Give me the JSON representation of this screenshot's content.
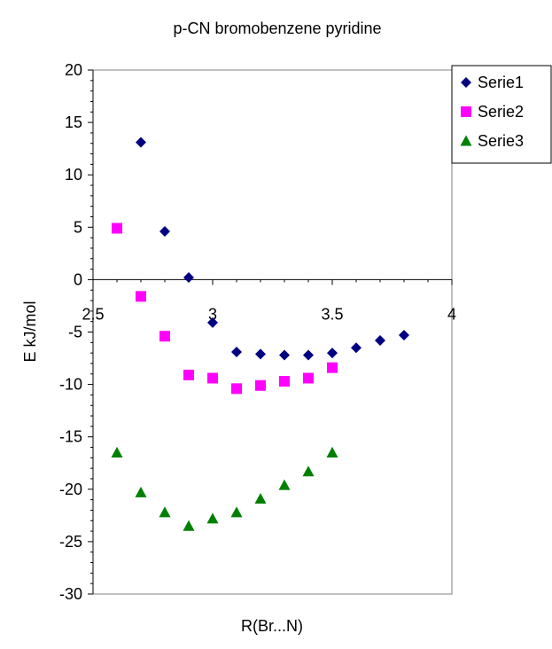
{
  "chart_data": {
    "type": "scatter",
    "title": "p-CN bromobenzene pyridine",
    "xlabel": "R(Br...N)",
    "ylabel": "E kJ/mol",
    "xlim": [
      2.5,
      4
    ],
    "ylim": [
      -30,
      20
    ],
    "x_ticks": [
      "2.5",
      "3",
      "3.5",
      "4"
    ],
    "y_ticks": [
      "20",
      "15",
      "10",
      "5",
      "0",
      "-5",
      "-10",
      "-15",
      "-20",
      "-25",
      "-30"
    ],
    "grid": false,
    "legend_position": "right",
    "series": [
      {
        "name": "Serie1",
        "marker": "diamond",
        "color": "#000080",
        "points": [
          [
            2.7,
            13.1
          ],
          [
            2.8,
            4.6
          ],
          [
            2.9,
            0.2
          ],
          [
            3.0,
            -4.1
          ],
          [
            3.1,
            -6.9
          ],
          [
            3.2,
            -7.1
          ],
          [
            3.3,
            -7.2
          ],
          [
            3.4,
            -7.2
          ],
          [
            3.5,
            -7.0
          ],
          [
            3.6,
            -6.5
          ],
          [
            3.7,
            -5.8
          ],
          [
            3.8,
            -5.3
          ]
        ]
      },
      {
        "name": "Serie2",
        "marker": "square",
        "color": "#ff00ff",
        "points": [
          [
            2.6,
            4.9
          ],
          [
            2.7,
            -1.6
          ],
          [
            2.8,
            -5.4
          ],
          [
            2.9,
            -9.1
          ],
          [
            3.0,
            -9.4
          ],
          [
            3.1,
            -10.4
          ],
          [
            3.2,
            -10.1
          ],
          [
            3.3,
            -9.7
          ],
          [
            3.4,
            -9.4
          ],
          [
            3.5,
            -8.4
          ]
        ]
      },
      {
        "name": "Serie3",
        "marker": "triangle",
        "color": "#008000",
        "points": [
          [
            2.6,
            -16.5
          ],
          [
            2.7,
            -20.3
          ],
          [
            2.8,
            -22.2
          ],
          [
            2.9,
            -23.5
          ],
          [
            3.0,
            -22.8
          ],
          [
            3.1,
            -22.2
          ],
          [
            3.2,
            -20.9
          ],
          [
            3.3,
            -19.6
          ],
          [
            3.4,
            -18.3
          ],
          [
            3.5,
            -16.5
          ]
        ]
      }
    ]
  }
}
